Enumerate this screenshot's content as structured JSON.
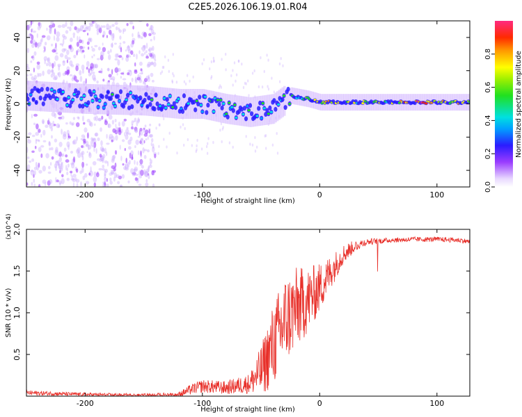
{
  "figure_title": "C2E5.2026.106.19.01.R04",
  "colors": {
    "snr_line": "#e8302a",
    "spectrum_core": "#1a1aff",
    "spectrum_halo": "#7b2cff"
  },
  "chart_data": [
    {
      "type": "heatmap",
      "title": "C2E5.2026.106.19.01.R04",
      "xlabel": "Height of straight line (km)",
      "ylabel": "Frequency (Hz)",
      "xlim": [
        -250,
        128
      ],
      "ylim": [
        -50,
        50
      ],
      "xticks": [
        -200,
        -100,
        0,
        100
      ],
      "yticks": [
        -40,
        -20,
        0,
        20,
        40
      ],
      "colorbar": {
        "label": "Normalized spectral amplitude",
        "range": [
          0,
          1
        ],
        "ticks": [
          0.0,
          0.2,
          0.4,
          0.6,
          0.8
        ]
      },
      "signal_track": [
        {
          "x": -250,
          "freq": 5,
          "amplitude": 0.3
        },
        {
          "x": -200,
          "freq": 3,
          "amplitude": 0.35
        },
        {
          "x": -150,
          "freq": 2,
          "amplitude": 0.35
        },
        {
          "x": -120,
          "freq": 0,
          "amplitude": 0.4
        },
        {
          "x": -100,
          "freq": 0,
          "amplitude": 0.45
        },
        {
          "x": -80,
          "freq": -3,
          "amplitude": 0.45
        },
        {
          "x": -60,
          "freq": -5,
          "amplitude": 0.4
        },
        {
          "x": -40,
          "freq": -3,
          "amplitude": 0.45
        },
        {
          "x": -25,
          "freq": 5,
          "amplitude": 0.5
        },
        {
          "x": -10,
          "freq": 3,
          "amplitude": 0.6
        },
        {
          "x": 0,
          "freq": 1,
          "amplitude": 0.7
        },
        {
          "x": 20,
          "freq": 1,
          "amplitude": 0.6
        },
        {
          "x": 60,
          "freq": 1,
          "amplitude": 0.6
        },
        {
          "x": 85,
          "freq": 1,
          "amplitude": 0.9
        },
        {
          "x": 100,
          "freq": 1,
          "amplitude": 0.7
        },
        {
          "x": 128,
          "freq": 1,
          "amplitude": 0.65
        }
      ],
      "noise_region": {
        "x_from": -250,
        "x_to": -140,
        "freq_from": -50,
        "freq_to": 50
      }
    },
    {
      "type": "line",
      "title": "",
      "xlabel": "Height of straight line (km)",
      "ylabel": "SNR (10 * v/v)",
      "y_multiplier": "(x10^4)",
      "xlim": [
        -250,
        128
      ],
      "ylim": [
        0,
        2.0
      ],
      "xticks": [
        -200,
        -100,
        0,
        100
      ],
      "yticks": [
        0.5,
        1.0,
        1.5,
        2.0
      ],
      "series": [
        {
          "name": "SNR",
          "x": [
            -250,
            -200,
            -150,
            -120,
            -110,
            -100,
            -80,
            -60,
            -50,
            -40,
            -30,
            -20,
            -10,
            0,
            10,
            20,
            30,
            40,
            60,
            80,
            100,
            120,
            128
          ],
          "y": [
            0.04,
            0.02,
            0.01,
            0.02,
            0.08,
            0.12,
            0.1,
            0.15,
            0.3,
            0.6,
            0.9,
            1.05,
            1.15,
            1.3,
            1.5,
            1.7,
            1.8,
            1.85,
            1.87,
            1.88,
            1.88,
            1.87,
            1.85
          ],
          "spread": [
            0.03,
            0.02,
            0.02,
            0.03,
            0.06,
            0.08,
            0.08,
            0.12,
            0.3,
            0.5,
            0.55,
            0.5,
            0.4,
            0.3,
            0.2,
            0.12,
            0.07,
            0.04,
            0.03,
            0.03,
            0.03,
            0.03,
            0.03
          ]
        }
      ]
    }
  ]
}
